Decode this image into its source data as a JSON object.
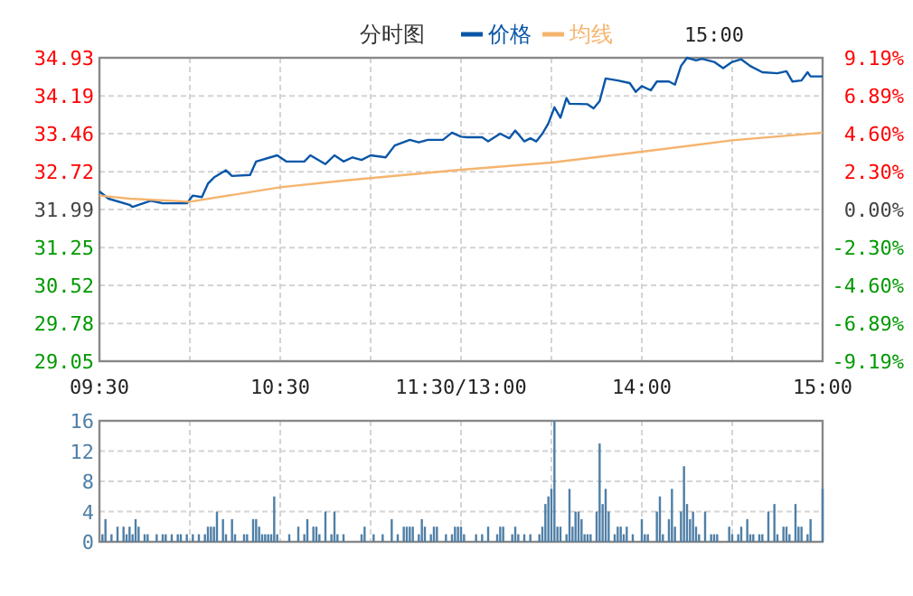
{
  "chart_data": [
    {
      "type": "line",
      "title": "分时图",
      "legend": "top",
      "grid": true,
      "annotations": [
        "15:00"
      ],
      "categories": [
        "09:30",
        null,
        null,
        null,
        null,
        null,
        null,
        null,
        null,
        null,
        null,
        null,
        null,
        null,
        null,
        null,
        null,
        null,
        null,
        null,
        null,
        null,
        null,
        null,
        null,
        null,
        null,
        null,
        null,
        null,
        null,
        null,
        null,
        null,
        null,
        null,
        null,
        null,
        null,
        null,
        null,
        null,
        null,
        null,
        null,
        null,
        null,
        null,
        null,
        null,
        null,
        null,
        null,
        null,
        null,
        null,
        null,
        null,
        null,
        null,
        "10:30",
        null,
        null,
        null,
        null,
        null,
        null,
        null,
        null,
        null,
        null,
        null,
        null,
        null,
        null,
        null,
        null,
        null,
        null,
        null,
        null,
        null,
        null,
        null,
        null,
        null,
        null,
        null,
        null,
        null,
        null,
        null,
        null,
        null,
        null,
        null,
        null,
        null,
        null,
        null,
        null,
        null,
        null,
        null,
        null,
        null,
        null,
        null,
        null,
        null,
        null,
        null,
        null,
        null,
        null,
        null,
        null,
        null,
        null,
        null,
        "11:30/13:00",
        null,
        null,
        null,
        null,
        null,
        null,
        null,
        null,
        null,
        null,
        null,
        null,
        null,
        null,
        null,
        null,
        null,
        null,
        null,
        null,
        null,
        null,
        null,
        null,
        null,
        null,
        null,
        null,
        null,
        null,
        null,
        null,
        null,
        null,
        null,
        null,
        null,
        null,
        null,
        null,
        null,
        null,
        null,
        null,
        null,
        null,
        null,
        null,
        null,
        null,
        null,
        null,
        null,
        null,
        null,
        null,
        null,
        null,
        null,
        "14:00",
        null,
        null,
        null,
        null,
        null,
        null,
        null,
        null,
        null,
        null,
        null,
        null,
        null,
        null,
        null,
        null,
        null,
        null,
        null,
        null,
        null,
        null,
        null,
        null,
        null,
        null,
        null,
        null,
        null,
        null,
        null,
        null,
        null,
        null,
        null,
        null,
        null,
        null,
        null,
        null,
        null,
        null,
        null,
        null,
        null,
        null,
        null,
        null,
        null,
        null,
        null,
        null,
        null,
        null,
        null,
        null,
        null,
        null,
        null,
        "15:00"
      ],
      "ylim": [
        29.05,
        34.93
      ],
      "yticks": [
        29.05,
        29.78,
        30.52,
        31.25,
        31.99,
        32.72,
        33.46,
        34.19,
        34.93
      ],
      "y2lim": [
        -9.19,
        9.19
      ],
      "y2ticks": [
        {
          "value": -9.19,
          "label": "-9.19%"
        },
        {
          "value": -6.89,
          "label": "-6.89%"
        },
        {
          "value": -4.6,
          "label": "-4.60%"
        },
        {
          "value": -2.3,
          "label": "-2.30%"
        },
        {
          "value": 0,
          "label": "0.00%"
        },
        {
          "value": 2.3,
          "label": "2.30%"
        },
        {
          "value": 4.6,
          "label": "4.60%"
        },
        {
          "value": 6.89,
          "label": "6.89%"
        },
        {
          "value": 9.19,
          "label": "9.19%"
        }
      ],
      "series": [
        {
          "name": "价格",
          "color": "#0a56a8",
          "values": [
            32.34,
            null,
            null,
            32.2,
            null,
            null,
            null,
            null,
            null,
            null,
            32.08,
            32.04,
            null,
            null,
            null,
            null,
            null,
            32.16,
            null,
            null,
            null,
            32.11,
            null,
            null,
            null,
            null,
            null,
            null,
            null,
            32.11,
            null,
            32.26,
            null,
            null,
            32.23,
            null,
            32.49,
            null,
            32.61,
            null,
            null,
            null,
            32.75,
            null,
            32.64,
            null,
            null,
            null,
            null,
            null,
            32.66,
            null,
            32.92,
            null,
            null,
            null,
            null,
            null,
            null,
            33.04,
            null,
            null,
            32.92,
            null,
            null,
            null,
            null,
            null,
            32.92,
            null,
            33.04,
            null,
            null,
            null,
            null,
            32.87,
            null,
            null,
            33.04,
            null,
            null,
            32.92,
            null,
            null,
            33.0,
            null,
            null,
            32.95,
            null,
            null,
            33.04,
            null,
            null,
            null,
            null,
            33.0,
            null,
            null,
            33.23,
            null,
            null,
            null,
            null,
            33.34,
            null,
            null,
            33.29,
            null,
            null,
            33.34,
            null,
            null,
            null,
            null,
            33.34,
            null,
            null,
            33.48,
            null,
            null,
            33.4,
            null,
            33.39,
            null,
            null,
            null,
            null,
            33.39,
            null,
            33.31,
            null,
            null,
            null,
            33.46,
            null,
            null,
            33.37,
            null,
            33.52,
            null,
            null,
            33.31,
            null,
            33.37,
            null,
            33.31,
            null,
            33.46,
            null,
            33.66,
            null,
            33.97,
            null,
            33.77,
            null,
            34.15,
            34.04,
            null,
            null,
            null,
            null,
            null,
            34.03,
            null,
            33.95,
            null,
            34.09,
            null,
            34.53,
            null,
            null,
            null,
            34.49,
            null,
            null,
            null,
            34.44,
            null,
            34.27,
            null,
            34.38,
            null,
            null,
            34.3,
            null,
            34.47,
            null,
            null,
            null,
            34.47,
            null,
            34.41,
            null,
            34.77,
            null,
            34.93,
            null,
            null,
            34.88,
            null,
            34.91,
            null,
            null,
            null,
            34.85,
            null,
            null,
            34.73,
            null,
            null,
            34.85,
            null,
            null,
            34.9,
            null,
            null,
            34.77,
            null,
            null,
            null,
            34.65,
            null,
            null,
            null,
            null,
            34.63,
            null,
            null,
            34.67,
            null,
            34.47,
            null,
            null,
            34.49,
            null,
            34.65,
            34.57,
            null,
            null,
            null,
            34.57
          ]
        },
        {
          "name": "均线",
          "color": "#f5b46e",
          "values": [
            32.26,
            null,
            null,
            null,
            null,
            null,
            null,
            null,
            null,
            null,
            32.2,
            null,
            null,
            null,
            null,
            null,
            null,
            null,
            null,
            null,
            null,
            null,
            null,
            null,
            null,
            null,
            null,
            null,
            null,
            null,
            32.14,
            null,
            null,
            null,
            null,
            null,
            null,
            null,
            null,
            null,
            null,
            null,
            null,
            null,
            null,
            null,
            null,
            null,
            null,
            null,
            null,
            null,
            null,
            null,
            null,
            null,
            null,
            null,
            null,
            null,
            32.42,
            null,
            null,
            null,
            null,
            null,
            null,
            null,
            null,
            null,
            null,
            null,
            null,
            null,
            null,
            null,
            null,
            null,
            null,
            null,
            null,
            32.55,
            null,
            null,
            null,
            null,
            null,
            null,
            null,
            null,
            null,
            null,
            null,
            null,
            null,
            null,
            null,
            null,
            null,
            null,
            null,
            null,
            null,
            null,
            null,
            null,
            null,
            null,
            null,
            null,
            null,
            null,
            null,
            null,
            null,
            null,
            null,
            null,
            null,
            null,
            32.76,
            null,
            null,
            null,
            null,
            null,
            null,
            null,
            null,
            null,
            null,
            null,
            null,
            null,
            null,
            null,
            null,
            null,
            null,
            null,
            null,
            null,
            null,
            null,
            null,
            null,
            null,
            null,
            null,
            null,
            32.9,
            null,
            null,
            null,
            null,
            null,
            null,
            null,
            null,
            null,
            null,
            null,
            null,
            null,
            null,
            null,
            null,
            null,
            null,
            null,
            null,
            null,
            null,
            null,
            null,
            null,
            null,
            null,
            null,
            null,
            33.11,
            null,
            null,
            null,
            null,
            null,
            null,
            null,
            null,
            null,
            null,
            null,
            null,
            null,
            null,
            null,
            null,
            null,
            null,
            null,
            null,
            null,
            null,
            null,
            null,
            null,
            null,
            null,
            null,
            null,
            33.33,
            null,
            null,
            null,
            null,
            null,
            null,
            null,
            null,
            null,
            null,
            null,
            null,
            null,
            null,
            null,
            null,
            null,
            null,
            null,
            null,
            null,
            null,
            null,
            null,
            null,
            null,
            null,
            null,
            null,
            33.48
          ]
        }
      ]
    },
    {
      "type": "bar",
      "color": "#4f7fa6",
      "grid": true,
      "tick_labels": "y",
      "categories": [
        null,
        null,
        null,
        null,
        null,
        null,
        null,
        null,
        null,
        null,
        null,
        null,
        null,
        null,
        null,
        null,
        null,
        null,
        null,
        null,
        null,
        null,
        null,
        null,
        null,
        null,
        null,
        null,
        null,
        null,
        null,
        null,
        null,
        null,
        null,
        null,
        null,
        null,
        null,
        null,
        null,
        null,
        null,
        null,
        null,
        null,
        null,
        null,
        null,
        null,
        null,
        null,
        null,
        null,
        null,
        null,
        null,
        null,
        null,
        null,
        null,
        null,
        null,
        null,
        null,
        null,
        null,
        null,
        null,
        null,
        null,
        null,
        null,
        null,
        null,
        null,
        null,
        null,
        null,
        null,
        null,
        null,
        null,
        null,
        null,
        null,
        null,
        null,
        null,
        null,
        null,
        null,
        null,
        null,
        null,
        null,
        null,
        null,
        null,
        null,
        null,
        null,
        null,
        null,
        null,
        null,
        null,
        null,
        null,
        null,
        null,
        null,
        null,
        null,
        null,
        null,
        null,
        null,
        null,
        null,
        null,
        null,
        null,
        null,
        null,
        null,
        null,
        null,
        null,
        null,
        null,
        null,
        null,
        null,
        null,
        null,
        null,
        null,
        null,
        null,
        null,
        null,
        null,
        null,
        null,
        null,
        null,
        null,
        null,
        null,
        null,
        null,
        null,
        null,
        null,
        null,
        null,
        null,
        null,
        null,
        null,
        null,
        null,
        null,
        null,
        null,
        null,
        null,
        null,
        null,
        null,
        null,
        null,
        null,
        null,
        null,
        null,
        null,
        null,
        null,
        null,
        null,
        null,
        null,
        null,
        null,
        null,
        null,
        null,
        null,
        null,
        null,
        null,
        null,
        null,
        null,
        null,
        null,
        null,
        null,
        null,
        null,
        null,
        null,
        null,
        null,
        null,
        null,
        null,
        null,
        null,
        null,
        null,
        null,
        null,
        null,
        null,
        null,
        null,
        null,
        null,
        null,
        null,
        null,
        null,
        null,
        null,
        null,
        null,
        null,
        null,
        null,
        null,
        null,
        null,
        null,
        null,
        null,
        null,
        null,
        null
      ],
      "ylim": [
        0,
        16
      ],
      "yticks": [
        0,
        4,
        8,
        12,
        16
      ],
      "values": [
        null,
        1,
        3,
        null,
        1,
        null,
        2,
        null,
        2,
        1,
        2,
        1,
        3,
        2,
        null,
        1,
        1,
        null,
        null,
        1,
        null,
        1,
        1,
        null,
        1,
        null,
        1,
        1,
        null,
        1,
        null,
        1,
        null,
        1,
        null,
        1,
        2,
        2,
        2,
        4,
        null,
        3,
        1,
        null,
        3,
        1,
        null,
        null,
        1,
        1,
        null,
        3,
        3,
        2,
        1,
        1,
        1,
        1,
        6,
        1,
        null,
        null,
        null,
        1,
        null,
        null,
        2,
        null,
        1,
        3,
        null,
        2,
        2,
        1,
        null,
        4,
        null,
        1,
        4,
        1,
        null,
        1,
        null,
        null,
        null,
        null,
        null,
        1,
        2,
        null,
        null,
        1,
        null,
        null,
        1,
        null,
        null,
        3,
        null,
        1,
        null,
        2,
        2,
        2,
        2,
        null,
        1,
        3,
        2,
        null,
        1,
        2,
        2,
        null,
        null,
        1,
        null,
        1,
        2,
        2,
        2,
        1,
        null,
        null,
        null,
        1,
        null,
        1,
        null,
        2,
        null,
        null,
        1,
        2,
        2,
        null,
        null,
        1,
        2,
        1,
        null,
        1,
        null,
        1,
        null,
        null,
        1,
        2,
        5,
        6,
        7,
        16,
        2,
        2,
        null,
        1,
        7,
        2,
        4,
        4,
        3,
        1,
        1,
        1,
        null,
        4,
        13,
        5,
        7,
        4,
        null,
        1,
        2,
        2,
        1,
        2,
        null,
        1,
        null,
        null,
        3,
        1,
        1,
        null,
        null,
        4,
        6,
        1,
        null,
        3,
        7,
        2,
        null,
        4,
        10,
        5,
        3,
        4,
        2,
        1,
        null,
        4,
        null,
        1,
        1,
        1,
        null,
        null,
        null,
        2,
        1,
        null,
        1,
        2,
        null,
        3,
        1,
        1,
        null,
        1,
        1,
        null,
        4,
        null,
        5,
        1,
        null,
        2,
        2,
        1,
        null,
        5,
        2,
        2,
        null,
        1,
        3,
        null,
        null,
        null,
        7
      ]
    }
  ]
}
